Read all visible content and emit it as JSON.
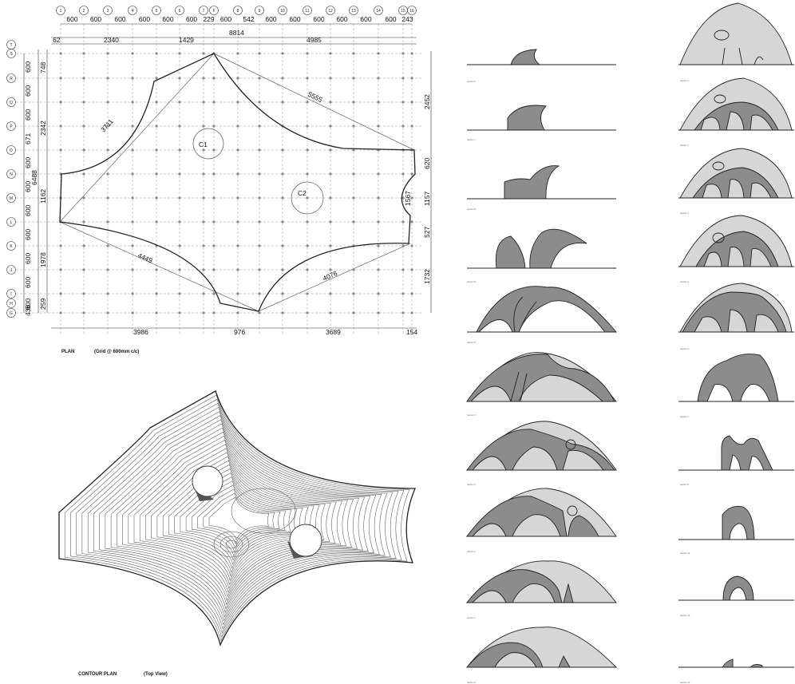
{
  "plan": {
    "caption": "PLAN",
    "caption_note": "(Grid @ 600mm c/c)",
    "top_grid_dims": [
      "600",
      "600",
      "600",
      "600",
      "600",
      "600",
      "229",
      "600",
      "542",
      "600",
      "600",
      "600",
      "600",
      "600",
      "600",
      "243"
    ],
    "column_bubbles": [
      "1",
      "2",
      "3",
      "4",
      "5",
      "6",
      "7",
      "F",
      "8",
      "9",
      "10",
      "11",
      "12",
      "13",
      "14",
      "15",
      "16"
    ],
    "row_bubbles": [
      "T",
      "S",
      "R",
      "Q",
      "P",
      "O",
      "N",
      "M",
      "L",
      "K",
      "J",
      "I",
      "H",
      "G"
    ],
    "left_grid_dims": [
      "600",
      "600",
      "600",
      "671",
      "600",
      "600",
      "600",
      "600",
      "600",
      "600",
      "600",
      "436"
    ],
    "overall_dims": {
      "d62": "62",
      "d2340": "2340",
      "d1429": "1429",
      "d8814": "8814",
      "d4985": "4985",
      "d748": "748",
      "d2342": "2342",
      "d6488": "6488",
      "d1162": "1162",
      "d1978": "1978",
      "d259": "259",
      "d2452": "2452",
      "d620": "620",
      "d1157": "1157",
      "d527": "527",
      "d1732": "1732",
      "d3986": "3986",
      "d976": "976",
      "d3689": "3689",
      "d154": "154",
      "diag3711": "3711",
      "diag5555": "5555",
      "diag4449": "4449",
      "diag4076": "4076",
      "d1567": "1567"
    },
    "columns": [
      {
        "label": "C1"
      },
      {
        "label": "C2"
      }
    ]
  },
  "contour": {
    "caption": "CONTOUR PLAN",
    "caption_note": "(Top View)"
  },
  "sections": {
    "left_labels": [
      "Section 6",
      "Section 7",
      "Section 8",
      "Section 9",
      "Section 5",
      "Section 4",
      "Section 3",
      "Section 2",
      "Section 1",
      "Section A"
    ],
    "right_labels": [
      "Section 1",
      "Section 2",
      "Section 3",
      "Section 4",
      "Section 6",
      "Section 7",
      "Section 8",
      "Section 11",
      "Section 12",
      "Section 13",
      "Section 14"
    ]
  },
  "colors": {
    "ink": "#111111",
    "shell_dark": "#8c8c8c",
    "shell_light": "#d6d6d6",
    "grid": "#9a9a9a"
  }
}
